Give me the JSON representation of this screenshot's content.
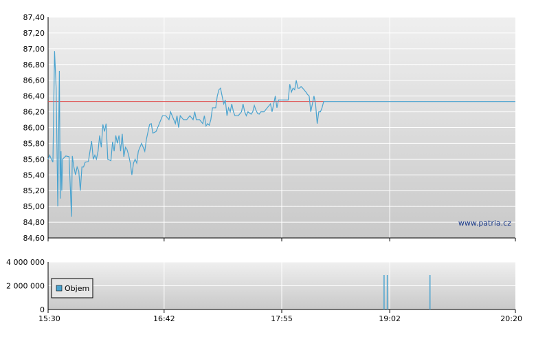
{
  "chart_data": [
    {
      "type": "line",
      "title": "",
      "ylim": [
        84.6,
        87.4
      ],
      "y_ticks": [
        "84,60",
        "84,80",
        "85,00",
        "85,20",
        "85,40",
        "85,60",
        "85,80",
        "86,00",
        "86,20",
        "86,40",
        "86,60",
        "86,80",
        "87,00",
        "87,20",
        "87,40"
      ],
      "y_tick_values": [
        84.6,
        84.8,
        85.0,
        85.2,
        85.4,
        85.6,
        85.8,
        86.0,
        86.2,
        86.4,
        86.6,
        86.8,
        87.0,
        87.2,
        87.4
      ],
      "x_ticks": [
        "15:30",
        "16:42",
        "17:55",
        "19:02",
        "20:20"
      ],
      "x_tick_minutes": [
        930,
        1002,
        1075,
        1142,
        1220
      ],
      "xlim_minutes": [
        930,
        1220
      ],
      "reference_value": 86.33,
      "reference_color": "#e05050",
      "line_color": "#4aa3cf",
      "grid": true,
      "watermark": "www.patria.cz",
      "series": [
        {
          "values": [
            [
              930,
              85.6
            ],
            [
              931,
              85.65
            ],
            [
              932,
              85.6
            ],
            [
              933,
              85.56
            ],
            [
              934,
              86.97
            ],
            [
              935,
              86.5
            ],
            [
              936,
              85.0
            ],
            [
              937,
              86.72
            ],
            [
              937.5,
              85.1
            ],
            [
              938,
              85.7
            ],
            [
              938.5,
              85.2
            ],
            [
              939,
              85.6
            ],
            [
              941,
              85.64
            ],
            [
              943,
              85.63
            ],
            [
              944.5,
              84.87
            ],
            [
              945,
              85.64
            ],
            [
              946,
              85.5
            ],
            [
              947,
              85.4
            ],
            [
              948,
              85.5
            ],
            [
              949,
              85.45
            ],
            [
              950,
              85.2
            ],
            [
              951,
              85.5
            ],
            [
              952,
              85.5
            ],
            [
              953,
              85.56
            ],
            [
              955,
              85.57
            ],
            [
              957,
              85.83
            ],
            [
              958,
              85.6
            ],
            [
              959,
              85.65
            ],
            [
              960,
              85.6
            ],
            [
              961,
              85.7
            ],
            [
              962,
              85.9
            ],
            [
              963,
              85.75
            ],
            [
              964,
              86.04
            ],
            [
              965,
              85.95
            ],
            [
              966,
              86.05
            ],
            [
              967,
              85.6
            ],
            [
              969,
              85.58
            ],
            [
              970,
              85.82
            ],
            [
              971,
              85.7
            ],
            [
              972,
              85.9
            ],
            [
              973,
              85.8
            ],
            [
              974,
              85.9
            ],
            [
              975,
              85.7
            ],
            [
              976,
              85.92
            ],
            [
              977,
              85.63
            ],
            [
              978,
              85.75
            ],
            [
              979,
              85.72
            ],
            [
              980,
              85.65
            ],
            [
              981,
              85.55
            ],
            [
              982,
              85.4
            ],
            [
              983,
              85.55
            ],
            [
              984,
              85.6
            ],
            [
              985,
              85.55
            ],
            [
              986,
              85.7
            ],
            [
              988,
              85.8
            ],
            [
              990,
              85.7
            ],
            [
              991,
              85.85
            ],
            [
              993,
              86.04
            ],
            [
              994,
              86.05
            ],
            [
              995,
              85.93
            ],
            [
              996,
              85.94
            ],
            [
              997,
              85.95
            ],
            [
              999,
              86.05
            ],
            [
              1001,
              86.15
            ],
            [
              1003,
              86.15
            ],
            [
              1005,
              86.1
            ],
            [
              1006,
              86.2
            ],
            [
              1008,
              86.1
            ],
            [
              1009,
              86.05
            ],
            [
              1010,
              86.15
            ],
            [
              1011,
              86.0
            ],
            [
              1012,
              86.15
            ],
            [
              1014,
              86.1
            ],
            [
              1016,
              86.1
            ],
            [
              1018,
              86.15
            ],
            [
              1020,
              86.1
            ],
            [
              1021,
              86.2
            ],
            [
              1022,
              86.1
            ],
            [
              1024,
              86.1
            ],
            [
              1026,
              86.05
            ],
            [
              1027,
              86.15
            ],
            [
              1028,
              86.02
            ],
            [
              1029,
              86.05
            ],
            [
              1030,
              86.03
            ],
            [
              1031,
              86.1
            ],
            [
              1032,
              86.25
            ],
            [
              1034,
              86.25
            ],
            [
              1035,
              86.4
            ],
            [
              1036,
              86.48
            ],
            [
              1037,
              86.5
            ],
            [
              1038,
              86.4
            ],
            [
              1039,
              86.3
            ],
            [
              1040,
              86.35
            ],
            [
              1041,
              86.15
            ],
            [
              1042,
              86.25
            ],
            [
              1043,
              86.2
            ],
            [
              1044,
              86.3
            ],
            [
              1045,
              86.2
            ],
            [
              1046,
              86.15
            ],
            [
              1048,
              86.15
            ],
            [
              1050,
              86.2
            ],
            [
              1051,
              86.3
            ],
            [
              1052,
              86.2
            ],
            [
              1053,
              86.15
            ],
            [
              1054,
              86.2
            ],
            [
              1056,
              86.17
            ],
            [
              1057,
              86.2
            ],
            [
              1058,
              86.28
            ],
            [
              1059,
              86.22
            ],
            [
              1060,
              86.18
            ],
            [
              1061,
              86.17
            ],
            [
              1062,
              86.2
            ],
            [
              1064,
              86.2
            ],
            [
              1066,
              86.25
            ],
            [
              1068,
              86.3
            ],
            [
              1069,
              86.2
            ],
            [
              1070,
              86.3
            ],
            [
              1071,
              86.4
            ],
            [
              1072,
              86.25
            ],
            [
              1073,
              86.35
            ],
            [
              1074,
              86.35
            ],
            [
              1076,
              86.35
            ],
            [
              1079,
              86.35
            ],
            [
              1080,
              86.55
            ],
            [
              1081,
              86.45
            ],
            [
              1082,
              86.5
            ],
            [
              1083,
              86.48
            ],
            [
              1084,
              86.6
            ],
            [
              1085,
              86.5
            ],
            [
              1086,
              86.5
            ],
            [
              1087,
              86.52
            ],
            [
              1088,
              86.5
            ],
            [
              1090,
              86.45
            ],
            [
              1091,
              86.42
            ],
            [
              1092,
              86.4
            ],
            [
              1093,
              86.2
            ],
            [
              1094,
              86.3
            ],
            [
              1095,
              86.4
            ],
            [
              1096,
              86.3
            ],
            [
              1097,
              86.05
            ],
            [
              1098,
              86.2
            ],
            [
              1099,
              86.2
            ],
            [
              1100,
              86.25
            ],
            [
              1101,
              86.33
            ],
            [
              1140,
              86.33
            ],
            [
              1220,
              86.33
            ]
          ]
        }
      ]
    },
    {
      "type": "bar",
      "title": "",
      "ylim": [
        0,
        4000000
      ],
      "y_ticks": [
        "0",
        "2 000 000",
        "4 000 000"
      ],
      "y_tick_values": [
        0,
        2000000,
        4000000
      ],
      "x_ticks": [
        "15:30",
        "16:42",
        "17:55",
        "19:02",
        "20:20"
      ],
      "bar_color": "#4aa3cf",
      "legend": "Objem",
      "series": [
        {
          "name": "Objem",
          "values": [
            [
              1138.5,
              2900000
            ],
            [
              1140.5,
              2900000
            ],
            [
              1167,
              2900000
            ]
          ]
        }
      ]
    }
  ]
}
